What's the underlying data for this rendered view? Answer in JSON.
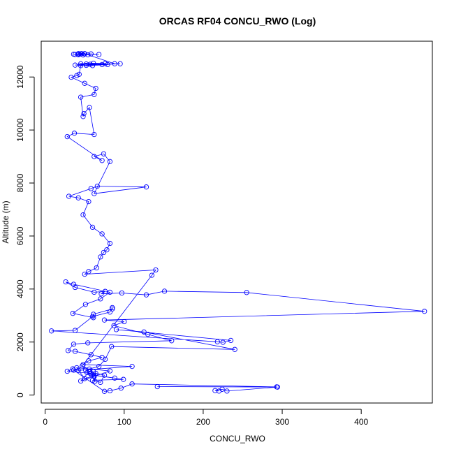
{
  "chart_data": {
    "type": "line",
    "title": "ORCAS RF04 CONCU_RWO (Log)",
    "xlabel": "CONCU_RWO",
    "ylabel": "Altitude (m)",
    "xlim": [
      -5,
      490
    ],
    "ylim": [
      -300,
      13350
    ],
    "x_ticks": [
      0,
      100,
      200,
      300,
      400
    ],
    "y_ticks": [
      0,
      2000,
      4000,
      6000,
      8000,
      10000,
      12000
    ],
    "grid": false,
    "legend": "none",
    "series_color": "#0000ff",
    "markers": "open-circle",
    "series": [
      {
        "x": [
          220,
          215,
          224,
          230,
          294,
          142,
          293,
          110,
          96,
          82,
          75,
          36,
          51,
          68,
          76,
          84,
          240,
          125,
          90,
          235,
          225,
          218,
          8,
          38,
          60,
          82,
          85,
          85,
          61,
          61,
          35,
          51,
          70,
          82,
          36,
          26,
          38,
          62,
          76,
          71,
          97,
          128,
          151,
          255,
          480,
          75,
          100,
          87,
          130,
          160,
          54,
          36,
          29,
          38,
          58,
          72,
          55,
          48,
          110,
          42,
          35,
          28,
          57,
          62,
          50,
          40,
          82,
          45,
          56,
          75,
          70,
          60,
          99,
          88,
          59,
          63,
          64,
          62,
          53,
          56,
          61,
          47,
          135,
          140,
          50,
          55,
          65,
          70,
          74,
          78,
          82,
          72,
          60,
          48,
          55,
          42,
          30,
          58,
          66,
          128,
          62,
          82,
          74,
          62,
          72,
          28,
          37,
          62,
          56,
          49,
          48,
          45,
          62,
          64,
          50,
          33,
          40,
          43,
          45,
          57,
          95,
          72,
          38,
          52,
          76,
          61,
          45,
          52,
          60,
          79,
          88,
          54,
          43,
          45,
          50,
          38,
          36,
          48,
          42,
          46,
          58,
          68,
          50,
          42
        ],
        "y": [
          150,
          170,
          220,
          150,
          300,
          320,
          310,
          420,
          260,
          160,
          140,
          940,
          950,
          1080,
          1350,
          1830,
          1720,
          2380,
          2470,
          2060,
          1990,
          2010,
          2420,
          2440,
          2960,
          3130,
          3300,
          3250,
          3050,
          2920,
          3080,
          3420,
          3630,
          3880,
          4180,
          4270,
          4060,
          3880,
          3910,
          3820,
          3850,
          3780,
          3920,
          3870,
          3160,
          2830,
          2770,
          2620,
          2290,
          2050,
          1970,
          1920,
          1680,
          1650,
          1520,
          1420,
          1290,
          1150,
          1080,
          930,
          990,
          900,
          820,
          730,
          620,
          1030,
          910,
          530,
          880,
          750,
          480,
          560,
          590,
          640,
          760,
          520,
          820,
          700,
          850,
          980,
          880,
          1100,
          4520,
          4720,
          4560,
          4660,
          4800,
          5210,
          5380,
          5480,
          5720,
          6080,
          6330,
          6800,
          7300,
          7440,
          7500,
          7790,
          7880,
          7850,
          7600,
          8810,
          9100,
          9000,
          8850,
          9750,
          9880,
          9830,
          10850,
          10620,
          10510,
          11240,
          11340,
          11570,
          11760,
          11990,
          12050,
          12100,
          12430,
          12480,
          12500,
          12470,
          12450,
          12490,
          12510,
          12520,
          12500,
          12440,
          12430,
          12470,
          12500,
          12840,
          12860,
          12870,
          12880,
          12850,
          12860,
          12830,
          12840,
          12880,
          12870,
          12850,
          12870,
          12880
        ]
      }
    ]
  }
}
